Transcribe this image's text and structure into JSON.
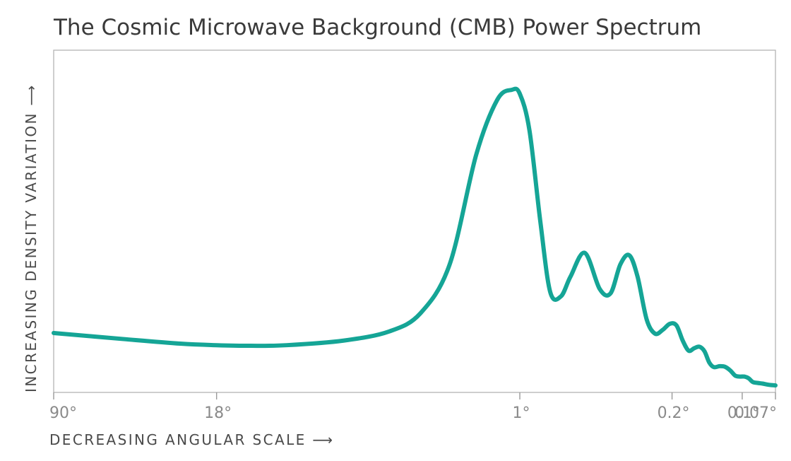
{
  "chart_data": {
    "type": "line",
    "title": "The Cosmic Microwave Background (CMB) Power Spectrum",
    "xlabel": "DECREASING ANGULAR SCALE ⟶",
    "ylabel": "INCREASING DENSITY VARIATION ⟶",
    "x_ticks": [
      "90°",
      "18°",
      "1°",
      "0.2°",
      "0.1°",
      "0.07°"
    ],
    "x_tick_positions": [
      2,
      10,
      200,
      900,
      1800,
      2500
    ],
    "xlim": [
      2,
      2500
    ],
    "ylim": [
      0,
      100
    ],
    "grid": false,
    "line_color": "#15a596",
    "axis_color": "#9a9a9a",
    "series": [
      {
        "x": [
          2,
          4,
          7,
          10,
          14,
          20,
          35,
          55,
          75,
          100,
          130,
          160,
          185,
          200,
          220,
          245,
          270,
          300,
          330,
          380,
          440,
          490,
          540,
          590,
          640,
          700,
          760,
          820,
          880,
          940,
          1000,
          1060,
          1120,
          1180,
          1240,
          1300,
          1360,
          1440,
          1520,
          1600,
          1680,
          1760,
          1840,
          1920,
          2000,
          2100,
          2200,
          2300,
          2400,
          2500
        ],
        "y": [
          19.5,
          17.5,
          16,
          15.5,
          15.3,
          15.5,
          17,
          20,
          26,
          42,
          78,
          96,
          99.3,
          98,
          86,
          56,
          33,
          31.5,
          38,
          45.8,
          34,
          32.5,
          42,
          45,
          38,
          24,
          19.3,
          20.5,
          22.5,
          22,
          17,
          13.7,
          14.5,
          15,
          13.5,
          9.8,
          8.3,
          8.6,
          8.4,
          7.2,
          5.5,
          5.2,
          5.2,
          4.6,
          3.4,
          3.1,
          2.9,
          2.6,
          2.4,
          2.3
        ]
      }
    ]
  }
}
